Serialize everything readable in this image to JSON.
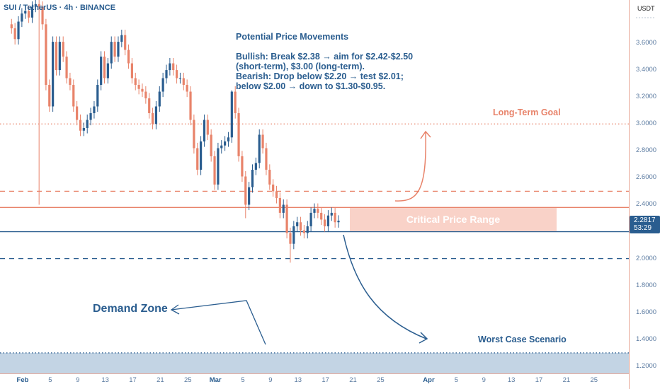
{
  "header": {
    "symbol": "SUI / TetherUS · 4h · BINANCE"
  },
  "price_axis": {
    "unit": "USDT",
    "last_price": "2.2817",
    "countdown": "53:29"
  },
  "colors": {
    "bull": "#2a5d8f",
    "bear": "#e8836a",
    "resistance": "#e8836a",
    "support": "#2a5d8f",
    "critical_fill": "#f9d2c8",
    "demand_fill": "#c3d4e4"
  },
  "annotations": {
    "note_title": "Potential Price Movements",
    "note_lines": [
      "Bullish: Break $2.38 → aim for $2.42-$2.50",
      "(short-term), $3.00 (long-term).",
      "Bearish: Drop below $2.20 → test $2.01;",
      "below $2.00 → down to $1.30-$0.95."
    ],
    "long_term_goal": "Long-Term Goal",
    "critical_range": "Critical Price Range",
    "worst_case": "Worst Case Scenario",
    "demand_zone": "Demand Zone"
  },
  "chart_data": {
    "type": "candlestick",
    "ylim": [
      1.15,
      3.8
    ],
    "y_ticks": [
      "3.6000",
      "3.4000",
      "3.2000",
      "3.0000",
      "2.8000",
      "2.6000",
      "2.4000",
      "2.0000",
      "1.8000",
      "1.6000",
      "1.4000",
      "1.2000"
    ],
    "x_ticks": [
      {
        "label": "Feb",
        "day": 0,
        "major": true
      },
      {
        "label": "5",
        "day": 4
      },
      {
        "label": "9",
        "day": 8
      },
      {
        "label": "13",
        "day": 12
      },
      {
        "label": "17",
        "day": 16
      },
      {
        "label": "21",
        "day": 20
      },
      {
        "label": "25",
        "day": 24
      },
      {
        "label": "Mar",
        "day": 28,
        "major": true
      },
      {
        "label": "5",
        "day": 32
      },
      {
        "label": "9",
        "day": 36
      },
      {
        "label": "13",
        "day": 40
      },
      {
        "label": "17",
        "day": 44
      },
      {
        "label": "21",
        "day": 48
      },
      {
        "label": "25",
        "day": 52
      },
      {
        "label": "Apr",
        "day": 59,
        "major": true
      },
      {
        "label": "5",
        "day": 63
      },
      {
        "label": "9",
        "day": 67
      },
      {
        "label": "13",
        "day": 71
      },
      {
        "label": "17",
        "day": 75
      },
      {
        "label": "21",
        "day": 79
      },
      {
        "label": "25",
        "day": 83
      }
    ],
    "x_start": "Jan 30 00:00",
    "interval_hours": 12,
    "close": [
      3.71,
      3.63,
      3.76,
      3.82,
      3.84,
      3.79,
      3.87,
      3.89,
      3.87,
      3.74,
      3.29,
      3.13,
      3.61,
      3.4,
      3.61,
      3.5,
      3.34,
      3.29,
      3.13,
      3.03,
      2.95,
      2.97,
      3.03,
      3.08,
      3.13,
      3.29,
      3.5,
      3.34,
      3.45,
      3.61,
      3.5,
      3.61,
      3.66,
      3.55,
      3.45,
      3.34,
      3.29,
      3.26,
      3.24,
      3.19,
      3.08,
      3.0,
      3.13,
      3.24,
      3.34,
      3.4,
      3.45,
      3.4,
      3.34,
      3.34,
      3.29,
      3.24,
      3.03,
      2.82,
      2.66,
      2.87,
      3.03,
      2.92,
      2.76,
      2.55,
      2.82,
      2.84,
      2.87,
      2.9,
      3.24,
      3.08,
      2.76,
      2.61,
      2.4,
      2.53,
      2.66,
      2.71,
      2.92,
      2.82,
      2.66,
      2.55,
      2.5,
      2.45,
      2.34,
      2.4,
      2.19,
      2.11,
      2.24,
      2.27,
      2.21,
      2.19,
      2.24,
      2.34,
      2.37,
      2.34,
      2.29,
      2.24,
      2.32,
      2.34,
      2.27,
      2.2817
    ],
    "long_wicks": [
      {
        "index": 8,
        "low": 2.4
      },
      {
        "index": 68,
        "low": 2.3
      },
      {
        "index": 81,
        "low": 1.97
      },
      {
        "index": 64,
        "high": 3.25
      }
    ],
    "levels": [
      {
        "price": 3.0,
        "style": "dotted",
        "color": "#e8836a"
      },
      {
        "price": 2.5,
        "style": "dashed",
        "color": "#e8836a"
      },
      {
        "price": 2.38,
        "style": "solid",
        "color": "#e8836a"
      },
      {
        "price": 2.2,
        "style": "solid",
        "color": "#2a5d8f"
      },
      {
        "price": 2.0,
        "style": "dashed",
        "color": "#2a5d8f"
      },
      {
        "price": 1.3,
        "style": "dotted",
        "color": "#2a5d8f"
      }
    ],
    "critical_range": [
      2.2,
      2.38
    ],
    "demand_zone": [
      1.15,
      1.3
    ]
  }
}
